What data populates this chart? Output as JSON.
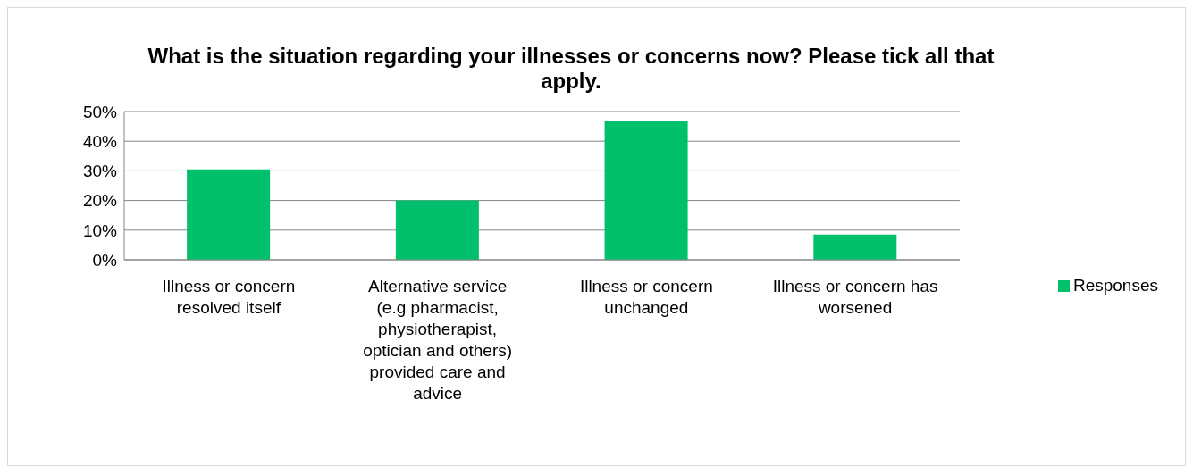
{
  "chart_data": {
    "type": "bar",
    "title": "What is the situation regarding your illnesses or concerns now? Please tick all that apply.",
    "categories": [
      "Illness or concern resolved itself",
      "Alternative service (e.g pharmacist, physiotherapist, optician and others) provided care and advice",
      "Illness or concern unchanged",
      "Illness or concern has worsened"
    ],
    "series": [
      {
        "name": "Responses",
        "color": "#00c06b",
        "values": [
          30.5,
          20,
          47,
          8.5
        ]
      }
    ],
    "ylim": [
      0,
      50
    ],
    "yticks": [
      {
        "value": 0,
        "label": "0%"
      },
      {
        "value": 10,
        "label": "10%"
      },
      {
        "value": 20,
        "label": "20%"
      },
      {
        "value": 30,
        "label": "30%"
      },
      {
        "value": 40,
        "label": "40%"
      },
      {
        "value": 50,
        "label": "50%"
      }
    ],
    "grid": "y",
    "legend": "right"
  }
}
